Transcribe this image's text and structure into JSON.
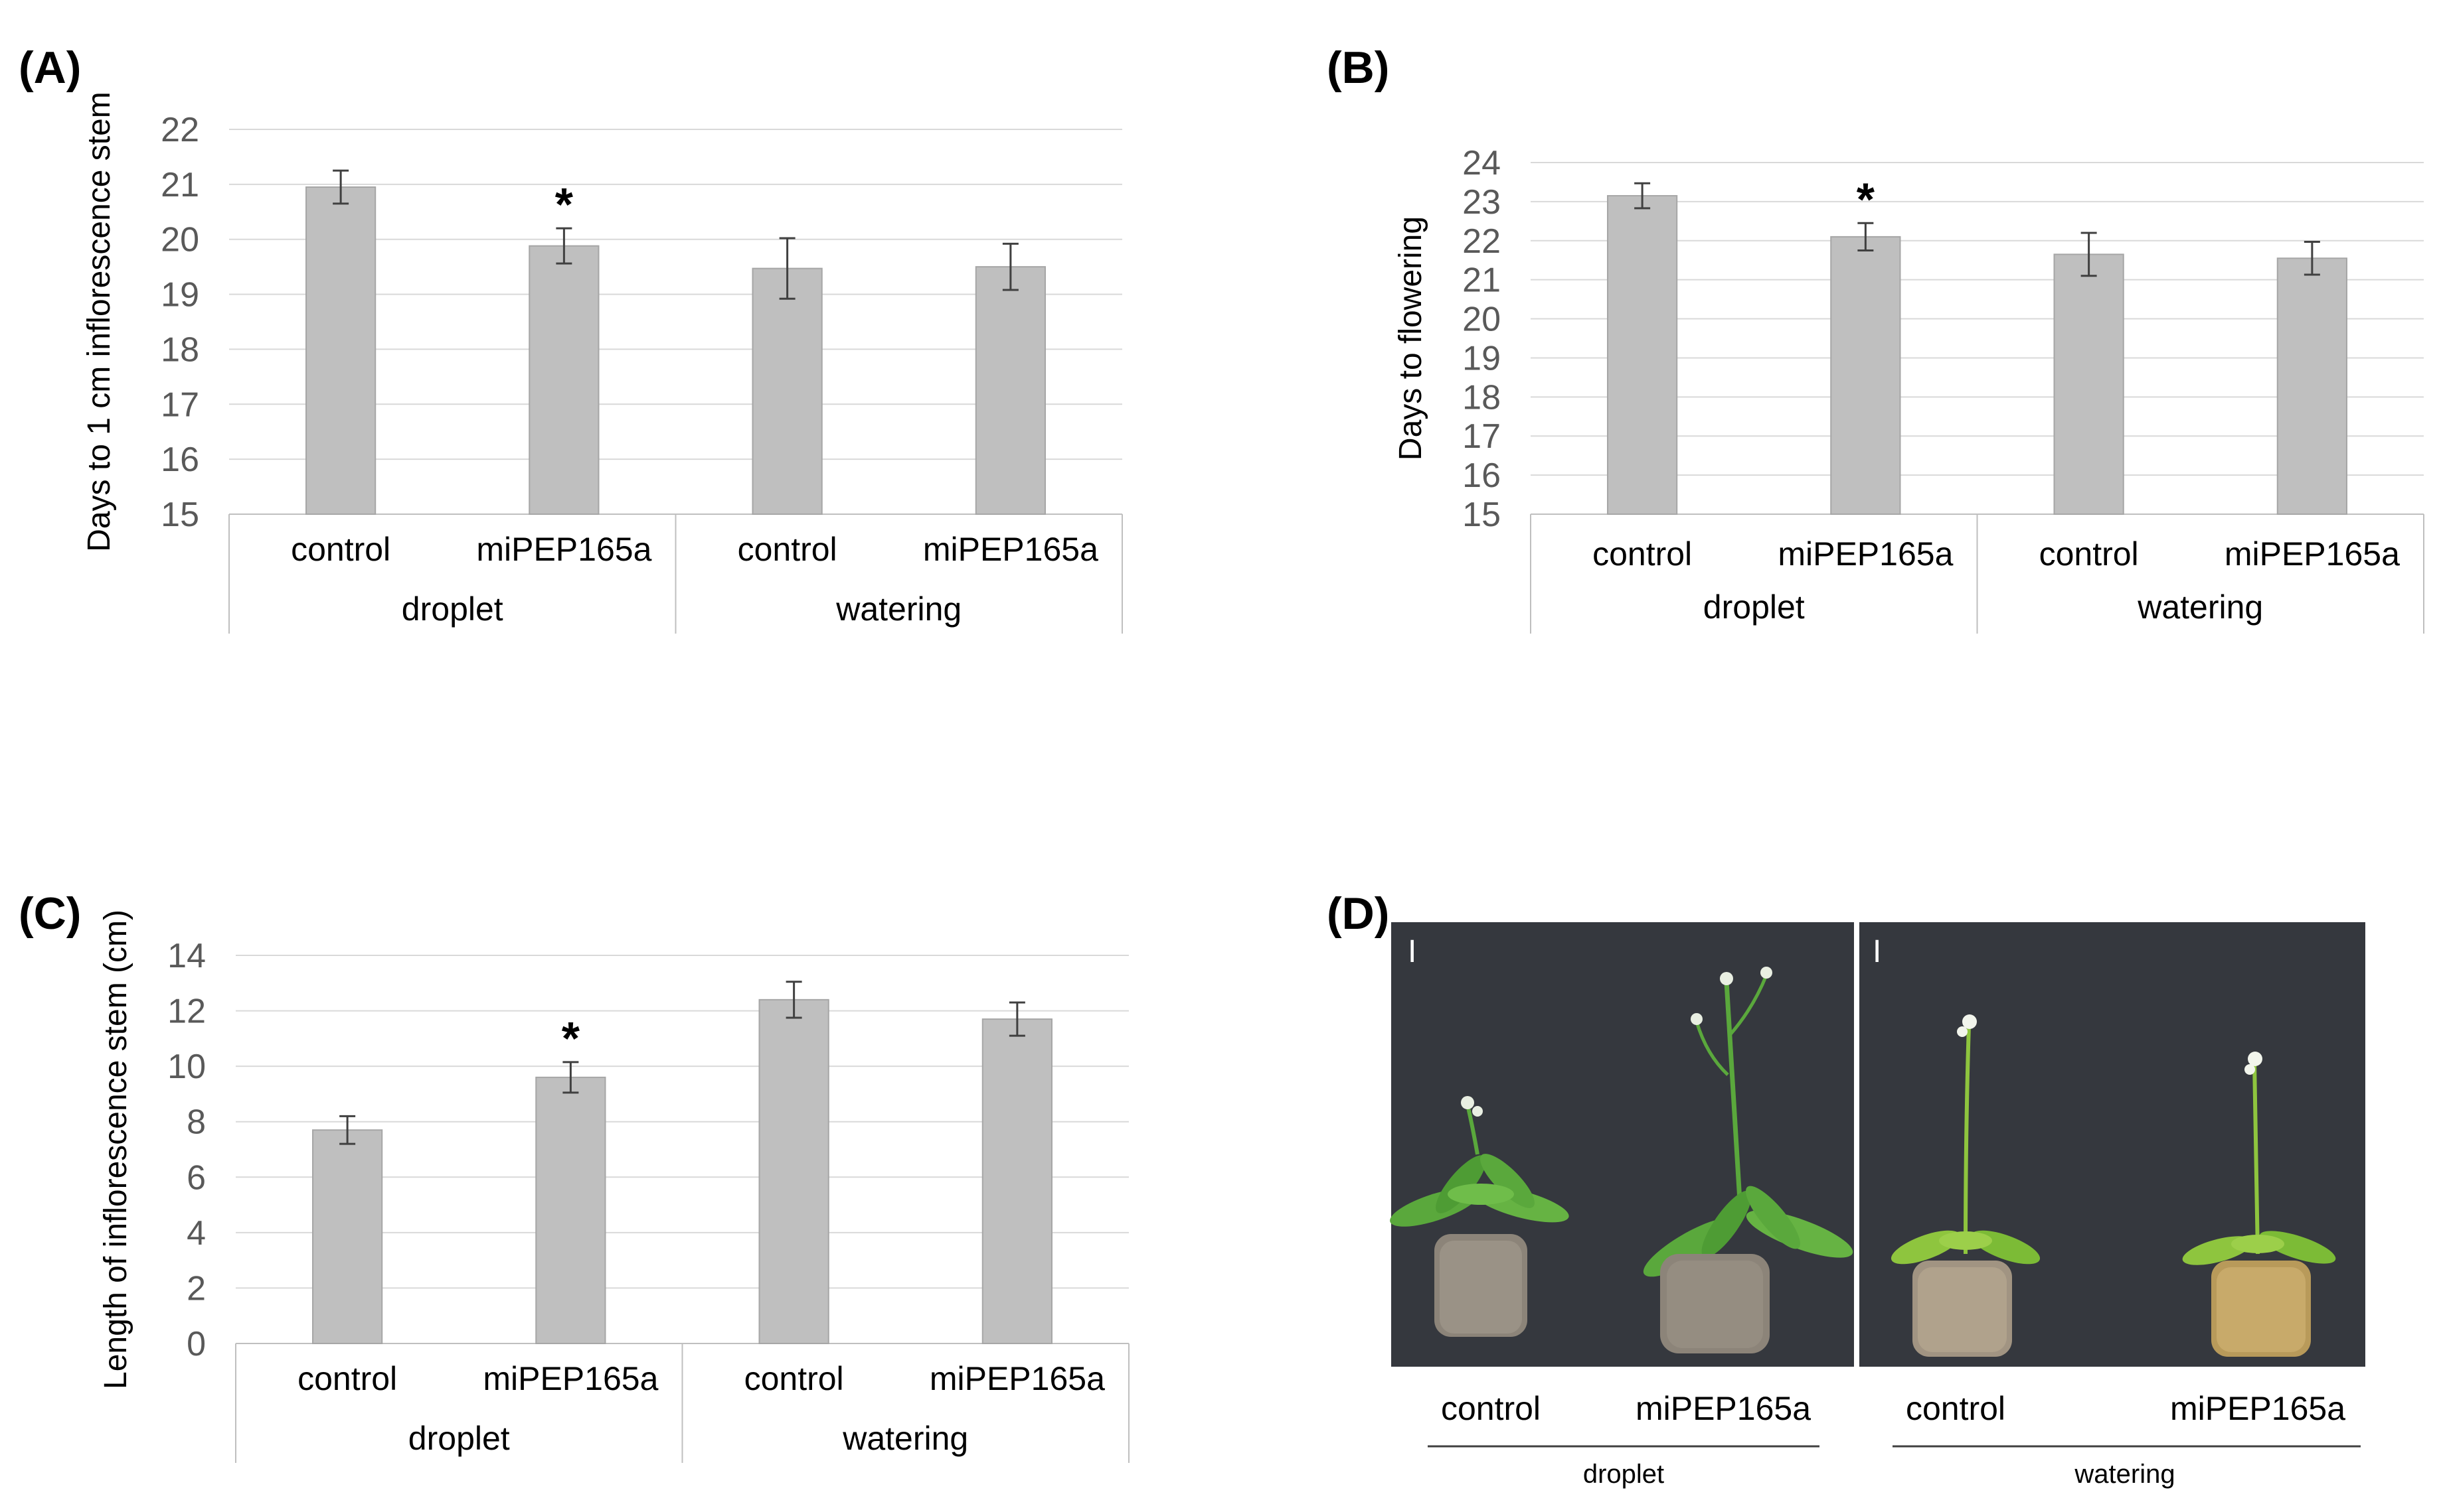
{
  "panels": {
    "A": "(A)",
    "B": "(B)",
    "C": "(C)",
    "D": "(D)"
  },
  "chart_data": [
    {
      "id": "A",
      "type": "bar",
      "ylabel": "Days to 1 cm inflorescence stem",
      "ylim": [
        15,
        22
      ],
      "yticks": [
        15,
        16,
        17,
        18,
        19,
        20,
        21,
        22
      ],
      "categories": [
        "control",
        "miPEP165a",
        "control",
        "miPEP165a"
      ],
      "groups": [
        "droplet",
        "watering"
      ],
      "values": [
        20.95,
        19.88,
        19.47,
        19.5
      ],
      "errors": [
        0.3,
        0.32,
        0.55,
        0.42
      ],
      "significance": [
        "",
        "*",
        "",
        ""
      ]
    },
    {
      "id": "B",
      "type": "bar",
      "ylabel": "Days to flowering",
      "ylim": [
        15,
        24
      ],
      "yticks": [
        15,
        16,
        17,
        18,
        19,
        20,
        21,
        22,
        23,
        24
      ],
      "categories": [
        "control",
        "miPEP165a",
        "control",
        "miPEP165a"
      ],
      "groups": [
        "droplet",
        "watering"
      ],
      "values": [
        23.15,
        22.1,
        21.65,
        21.55
      ],
      "errors": [
        0.32,
        0.35,
        0.55,
        0.42
      ],
      "significance": [
        "",
        "*",
        "",
        ""
      ]
    },
    {
      "id": "C",
      "type": "bar",
      "ylabel": "Length of inflorescence stem (cm)",
      "ylim": [
        0,
        14
      ],
      "yticks": [
        0,
        2,
        4,
        6,
        8,
        10,
        12,
        14
      ],
      "categories": [
        "control",
        "miPEP165a",
        "control",
        "miPEP165a"
      ],
      "groups": [
        "droplet",
        "watering"
      ],
      "values": [
        7.7,
        9.6,
        12.4,
        11.7
      ],
      "errors": [
        0.5,
        0.55,
        0.65,
        0.6
      ],
      "significance": [
        "",
        "*",
        "",
        ""
      ]
    }
  ],
  "photo": {
    "scale_mark": "I",
    "labels": [
      "control",
      "miPEP165a",
      "control",
      "miPEP165a"
    ],
    "groups": [
      "droplet",
      "watering"
    ]
  },
  "colors": {
    "bar": "#bfbfbf",
    "photo_background": "#3a3d42",
    "plant": "#5aa83c",
    "soil": "#8c8479"
  }
}
